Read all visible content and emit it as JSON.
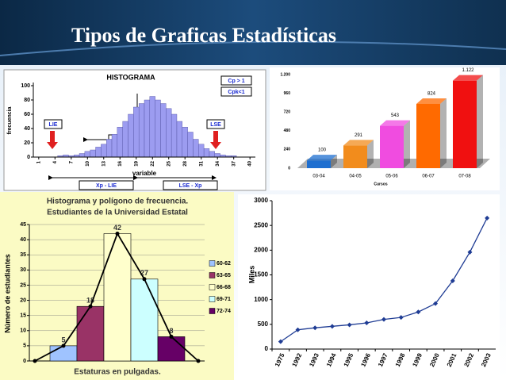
{
  "title": "Tipos de Graficas Estadísticas",
  "chart_data": [
    {
      "type": "bar",
      "title": "HISTOGRAMA",
      "xlabel": "variable",
      "ylabel": "frecuencia",
      "color": "#9c9cf0",
      "x": [
        1,
        2,
        3,
        4,
        5,
        6,
        7,
        8,
        9,
        10,
        11,
        12,
        13,
        14,
        15,
        16,
        17,
        18,
        19,
        20,
        21,
        22,
        23,
        24,
        25,
        26,
        27,
        28,
        29,
        30,
        31,
        32,
        33,
        34,
        35,
        36,
        37,
        38,
        39,
        40
      ],
      "values": [
        0,
        0,
        0,
        0,
        2,
        3,
        2,
        3,
        5,
        8,
        10,
        14,
        18,
        25,
        32,
        42,
        50,
        60,
        70,
        75,
        80,
        85,
        80,
        75,
        68,
        60,
        50,
        42,
        35,
        25,
        18,
        12,
        8,
        5,
        3,
        2,
        2,
        0,
        0,
        0
      ],
      "xlim": [
        0,
        41
      ],
      "xticks": [
        1,
        4,
        7,
        10,
        13,
        16,
        19,
        22,
        25,
        28,
        31,
        34,
        37,
        40
      ],
      "ylim": [
        0,
        100
      ],
      "yticks": [
        0,
        20,
        40,
        60,
        80,
        100
      ],
      "annotations": [
        "Cp > 1",
        "Cpk<1",
        "LIE",
        "LSE",
        "3 σ",
        "Xp - LIE",
        "LSE - Xp"
      ]
    },
    {
      "type": "bar3d",
      "xlabel": "Cursos",
      "categories": [
        "03-04",
        "04-05",
        "05-06",
        "06-07",
        "07-08"
      ],
      "values": [
        100,
        291,
        543,
        824,
        1122
      ],
      "value_labels": [
        "100",
        "291",
        "543",
        "824",
        "1.122"
      ],
      "colors": [
        "#1e6fd0",
        "#f28c1c",
        "#f04ce0",
        "#ff6a00",
        "#f01010"
      ],
      "ylim": [
        0,
        1200
      ],
      "yticks": [
        0,
        240,
        480,
        720,
        960,
        {
          "value": 1200,
          "label": "1.200"
        }
      ]
    },
    {
      "type": "combo",
      "title": "Histograma y polígono de frecuencia.",
      "subtitle": "Estudiantes de la Universidad Estatal",
      "xlabel": "Estaturas en pulgadas.",
      "ylabel": "Número de estudiantes",
      "categories": [
        "60-62",
        "63-65",
        "66-68",
        "69-71",
        "72-74"
      ],
      "values": [
        5,
        18,
        42,
        27,
        8
      ],
      "colors": [
        "#9fc3ff",
        "#993366",
        "#ffffcc",
        "#ccffff",
        "#660066"
      ],
      "polygon": [
        0,
        5,
        18,
        42,
        27,
        8,
        0
      ],
      "ylim": [
        0,
        45
      ],
      "yticks": [
        0,
        5,
        10,
        15,
        20,
        25,
        30,
        35,
        40,
        45
      ]
    },
    {
      "type": "line",
      "ylabel": "Miles",
      "color": "#1f3c94",
      "categories": [
        "1975",
        "1992",
        "1993",
        "1994",
        "1995",
        "1996",
        "1997",
        "1998",
        "1999",
        "2000",
        "2001",
        "2002",
        "2003"
      ],
      "values": [
        150,
        390,
        430,
        460,
        490,
        530,
        600,
        640,
        750,
        920,
        1380,
        1960,
        2650
      ],
      "ylim": [
        0,
        3000
      ],
      "yticks": [
        0,
        500,
        1000,
        1500,
        2000,
        2500,
        3000
      ]
    }
  ]
}
